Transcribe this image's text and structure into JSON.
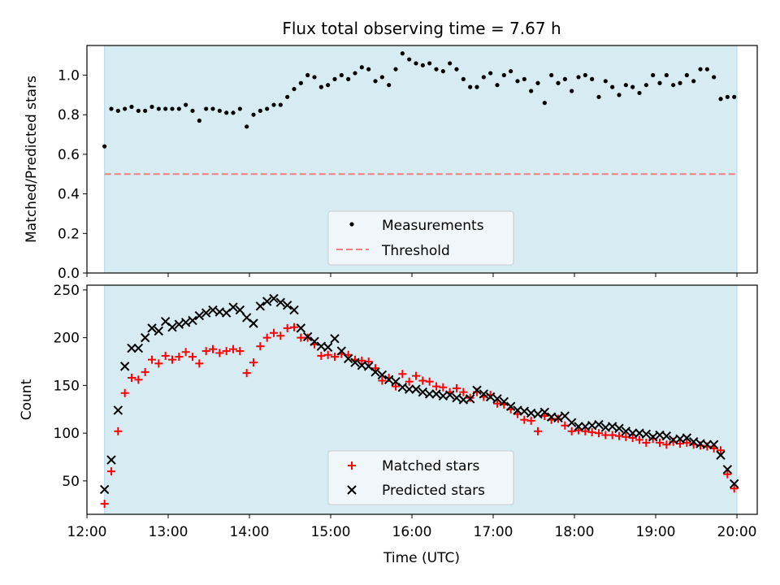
{
  "colors": {
    "shade": "#add8e6",
    "threshold": "#f08080",
    "measurements": "#000000",
    "matched": "#ff0000",
    "predicted": "#000000",
    "legend_bg": "#f4f8fb"
  },
  "chart_data": [
    {
      "type": "scatter",
      "title": "Flux total observing time = 7.67 h",
      "xlabel": "",
      "ylabel": "Matched/Predicted stars",
      "xlim": [
        "12:00",
        "20:15"
      ],
      "ylim": [
        0,
        1.15
      ],
      "yticks": [
        "0.0",
        "0.2",
        "0.4",
        "0.6",
        "0.8",
        "1.0"
      ],
      "shaded_span": [
        "12:13",
        "20:00"
      ],
      "legend": {
        "placement": "lower-center",
        "entries": [
          "Measurements",
          "Threshold"
        ]
      },
      "threshold": {
        "name": "Threshold",
        "value": 0.5,
        "style": "dashed"
      },
      "series": [
        {
          "name": "Measurements",
          "marker": "dot",
          "x": [
            "12:13",
            "12:18",
            "12:23",
            "12:28",
            "12:33",
            "12:38",
            "12:43",
            "12:48",
            "12:53",
            "12:58",
            "13:03",
            "13:08",
            "13:13",
            "13:18",
            "13:23",
            "13:28",
            "13:33",
            "13:38",
            "13:43",
            "13:48",
            "13:53",
            "13:58",
            "14:03",
            "14:08",
            "14:13",
            "14:18",
            "14:23",
            "14:28",
            "14:33",
            "14:38",
            "14:43",
            "14:48",
            "14:53",
            "14:58",
            "15:03",
            "15:08",
            "15:13",
            "15:18",
            "15:23",
            "15:28",
            "15:33",
            "15:38",
            "15:43",
            "15:48",
            "15:53",
            "15:58",
            "16:03",
            "16:08",
            "16:13",
            "16:18",
            "16:23",
            "16:28",
            "16:33",
            "16:38",
            "16:43",
            "16:48",
            "16:53",
            "16:58",
            "17:03",
            "17:08",
            "17:13",
            "17:18",
            "17:23",
            "17:28",
            "17:33",
            "17:38",
            "17:43",
            "17:48",
            "17:53",
            "17:58",
            "18:03",
            "18:08",
            "18:13",
            "18:18",
            "18:23",
            "18:28",
            "18:33",
            "18:38",
            "18:43",
            "18:48",
            "18:53",
            "18:58",
            "19:03",
            "19:08",
            "19:13",
            "19:18",
            "19:23",
            "19:28",
            "19:33",
            "19:38",
            "19:43",
            "19:48",
            "19:53",
            "19:58"
          ],
          "y": [
            0.64,
            0.83,
            0.82,
            0.83,
            0.84,
            0.82,
            0.82,
            0.84,
            0.83,
            0.83,
            0.83,
            0.83,
            0.85,
            0.82,
            0.77,
            0.83,
            0.83,
            0.82,
            0.81,
            0.81,
            0.83,
            0.74,
            0.8,
            0.82,
            0.83,
            0.85,
            0.85,
            0.89,
            0.93,
            0.96,
            1.0,
            0.99,
            0.94,
            0.95,
            0.98,
            1.0,
            0.98,
            1.01,
            1.04,
            1.03,
            0.97,
            0.99,
            0.95,
            1.03,
            1.11,
            1.08,
            1.06,
            1.05,
            1.06,
            1.03,
            1.02,
            1.06,
            1.03,
            0.98,
            0.94,
            0.94,
            0.99,
            1.01,
            0.95,
            1.0,
            1.02,
            0.97,
            0.98,
            0.92,
            0.96,
            0.86,
            1.0,
            0.96,
            0.98,
            0.92,
            0.99,
            1.0,
            0.98,
            0.89,
            0.97,
            0.94,
            0.9,
            0.95,
            0.94,
            0.91,
            0.95,
            1.0,
            0.96,
            1.0,
            0.95,
            0.96,
            1.0,
            0.97,
            1.03,
            1.03,
            0.99,
            0.88,
            0.89,
            0.89
          ]
        }
      ]
    },
    {
      "type": "scatter",
      "title": "",
      "xlabel": "Time (UTC)",
      "ylabel": "Count",
      "xlim": [
        "12:00",
        "20:15"
      ],
      "ylim": [
        15,
        255
      ],
      "xticks": [
        "12:00",
        "13:00",
        "14:00",
        "15:00",
        "16:00",
        "17:00",
        "18:00",
        "19:00",
        "20:00"
      ],
      "yticks": [
        "50",
        "100",
        "150",
        "200",
        "250"
      ],
      "shaded_span": [
        "12:13",
        "20:00"
      ],
      "legend": {
        "placement": "lower-center",
        "entries": [
          "Matched stars",
          "Predicted stars"
        ]
      },
      "series": [
        {
          "name": "Matched stars",
          "marker": "plus",
          "x": [
            "12:13",
            "12:18",
            "12:23",
            "12:28",
            "12:33",
            "12:38",
            "12:43",
            "12:48",
            "12:53",
            "12:58",
            "13:03",
            "13:08",
            "13:13",
            "13:18",
            "13:23",
            "13:28",
            "13:33",
            "13:38",
            "13:43",
            "13:48",
            "13:53",
            "13:58",
            "14:03",
            "14:08",
            "14:13",
            "14:18",
            "14:23",
            "14:28",
            "14:33",
            "14:38",
            "14:43",
            "14:48",
            "14:53",
            "14:58",
            "15:03",
            "15:08",
            "15:13",
            "15:18",
            "15:23",
            "15:28",
            "15:33",
            "15:38",
            "15:43",
            "15:48",
            "15:53",
            "15:58",
            "16:03",
            "16:08",
            "16:13",
            "16:18",
            "16:23",
            "16:28",
            "16:33",
            "16:38",
            "16:43",
            "16:48",
            "16:53",
            "16:58",
            "17:03",
            "17:08",
            "17:13",
            "17:18",
            "17:23",
            "17:28",
            "17:33",
            "17:38",
            "17:43",
            "17:48",
            "17:53",
            "17:58",
            "18:03",
            "18:08",
            "18:13",
            "18:18",
            "18:23",
            "18:28",
            "18:33",
            "18:38",
            "18:43",
            "18:48",
            "18:53",
            "18:58",
            "19:03",
            "19:08",
            "19:13",
            "19:18",
            "19:23",
            "19:28",
            "19:33",
            "19:38",
            "19:43",
            "19:48",
            "19:53",
            "19:58"
          ],
          "y": [
            26,
            60,
            102,
            142,
            158,
            156,
            164,
            177,
            173,
            181,
            177,
            180,
            185,
            180,
            173,
            186,
            188,
            184,
            186,
            188,
            186,
            163,
            174,
            191,
            200,
            205,
            202,
            210,
            211,
            200,
            200,
            193,
            181,
            182,
            180,
            183,
            182,
            177,
            176,
            175,
            168,
            155,
            158,
            149,
            162,
            154,
            160,
            155,
            154,
            149,
            148,
            143,
            147,
            143,
            137,
            143,
            138,
            140,
            131,
            130,
            125,
            120,
            114,
            113,
            102,
            118,
            114,
            115,
            108,
            102,
            103,
            102,
            101,
            100,
            98,
            98,
            97,
            96,
            95,
            93,
            90,
            94,
            90,
            88,
            91,
            89,
            90,
            88,
            87,
            86,
            84,
            82,
            57,
            42
          ]
        },
        {
          "name": "Predicted stars",
          "marker": "x",
          "x": [
            "12:13",
            "12:18",
            "12:23",
            "12:28",
            "12:33",
            "12:38",
            "12:43",
            "12:48",
            "12:53",
            "12:58",
            "13:03",
            "13:08",
            "13:13",
            "13:18",
            "13:23",
            "13:28",
            "13:33",
            "13:38",
            "13:43",
            "13:48",
            "13:53",
            "13:58",
            "14:03",
            "14:08",
            "14:13",
            "14:18",
            "14:23",
            "14:28",
            "14:33",
            "14:38",
            "14:43",
            "14:48",
            "14:53",
            "14:58",
            "15:03",
            "15:08",
            "15:13",
            "15:18",
            "15:23",
            "15:28",
            "15:33",
            "15:38",
            "15:43",
            "15:48",
            "15:53",
            "15:58",
            "16:03",
            "16:08",
            "16:13",
            "16:18",
            "16:23",
            "16:28",
            "16:33",
            "16:38",
            "16:43",
            "16:48",
            "16:53",
            "16:58",
            "17:03",
            "17:08",
            "17:13",
            "17:18",
            "17:23",
            "17:28",
            "17:33",
            "17:38",
            "17:43",
            "17:48",
            "17:53",
            "17:58",
            "18:03",
            "18:08",
            "18:13",
            "18:18",
            "18:23",
            "18:28",
            "18:33",
            "18:38",
            "18:43",
            "18:48",
            "18:53",
            "18:58",
            "19:03",
            "19:08",
            "19:13",
            "19:18",
            "19:23",
            "19:28",
            "19:33",
            "19:38",
            "19:43",
            "19:48",
            "19:53",
            "19:58"
          ],
          "y": [
            41,
            72,
            124,
            170,
            189,
            189,
            200,
            210,
            207,
            217,
            211,
            214,
            216,
            218,
            223,
            226,
            229,
            227,
            226,
            232,
            229,
            221,
            215,
            233,
            238,
            241,
            237,
            234,
            229,
            210,
            201,
            196,
            191,
            190,
            199,
            186,
            178,
            174,
            171,
            170,
            164,
            161,
            156,
            154,
            148,
            146,
            146,
            143,
            141,
            141,
            139,
            140,
            137,
            135,
            136,
            145,
            141,
            138,
            136,
            133,
            128,
            124,
            123,
            121,
            120,
            122,
            117,
            116,
            118,
            111,
            107,
            107,
            108,
            109,
            106,
            107,
            105,
            102,
            100,
            100,
            99,
            96,
            98,
            97,
            93,
            94,
            95,
            91,
            89,
            88,
            88,
            77,
            62,
            47
          ]
        }
      ]
    }
  ]
}
